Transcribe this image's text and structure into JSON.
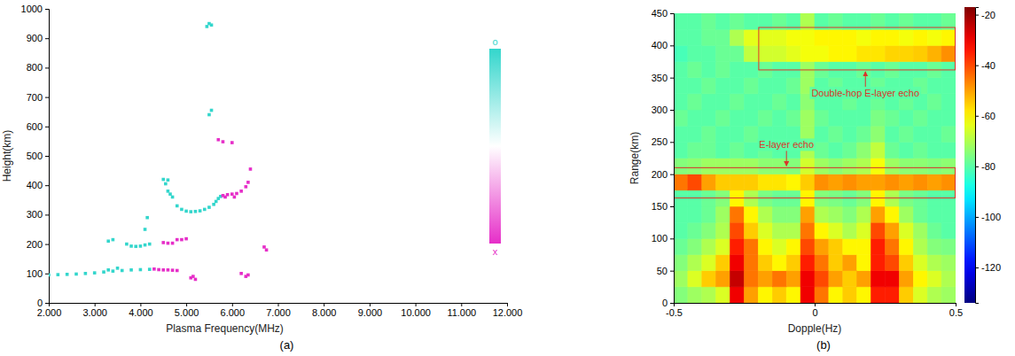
{
  "chart_data": [
    {
      "type": "scatter",
      "caption": "(a)",
      "xlabel": "Plasma Frequency(MHz)",
      "ylabel": "Height(km)",
      "xlim": [
        2,
        12
      ],
      "xticks": [
        {
          "value": 2,
          "label": "2.000"
        },
        {
          "value": 3,
          "label": "3.000"
        },
        {
          "value": 4,
          "label": "4.000"
        },
        {
          "value": 5,
          "label": "5.000"
        },
        {
          "value": 6,
          "label": "6.000"
        },
        {
          "value": 7,
          "label": "7.000"
        },
        {
          "value": 8,
          "label": "8.000"
        },
        {
          "value": 9,
          "label": "9.000"
        },
        {
          "value": 10,
          "label": "10.000"
        },
        {
          "value": 11,
          "label": "11.000"
        },
        {
          "value": 12,
          "label": "12.000"
        }
      ],
      "ylim": [
        0,
        1000
      ],
      "yticks": [
        0,
        100,
        200,
        300,
        400,
        500,
        600,
        700,
        800,
        900,
        1000
      ],
      "grid": false,
      "legend": "right",
      "marker": "square",
      "series": [
        {
          "name": "o",
          "color": "#33d6cc",
          "x": [
            2.0,
            2.2,
            2.4,
            2.6,
            2.8,
            3.0,
            3.2,
            3.3,
            3.4,
            3.5,
            3.6,
            3.8,
            4.0,
            4.2,
            3.3,
            3.4,
            3.7,
            3.8,
            3.9,
            4.0,
            4.1,
            4.2,
            4.1,
            4.15,
            4.5,
            4.6,
            4.55,
            4.6,
            4.65,
            4.7,
            4.8,
            4.9,
            5.0,
            5.1,
            5.2,
            5.3,
            5.4,
            5.5,
            5.6,
            5.65,
            5.7,
            5.75,
            5.5,
            5.55,
            5.45,
            5.5,
            5.55
          ],
          "values": [
            95,
            96,
            97,
            98,
            100,
            102,
            105,
            112,
            108,
            118,
            110,
            112,
            113,
            114,
            210,
            215,
            200,
            193,
            192,
            193,
            197,
            200,
            250,
            290,
            420,
            418,
            405,
            380,
            370,
            360,
            330,
            318,
            312,
            310,
            311,
            313,
            318,
            325,
            335,
            345,
            355,
            362,
            640,
            655,
            940,
            950,
            945
          ]
        },
        {
          "name": "x",
          "color": "#e62ec8",
          "x": [
            4.3,
            4.4,
            4.5,
            4.6,
            4.7,
            4.8,
            4.5,
            4.6,
            4.7,
            4.8,
            4.9,
            5.0,
            5.1,
            5.15,
            5.2,
            5.8,
            5.85,
            5.9,
            6.0,
            6.05,
            6.1,
            6.2,
            6.3,
            6.35,
            6.4,
            5.7,
            5.8,
            6.0,
            6.2,
            6.3,
            6.35,
            6.7,
            6.75
          ],
          "values": [
            115,
            113,
            112,
            112,
            111,
            110,
            205,
            203,
            203,
            215,
            215,
            218,
            85,
            90,
            80,
            365,
            360,
            368,
            370,
            360,
            372,
            380,
            395,
            410,
            455,
            555,
            548,
            545,
            100,
            90,
            95,
            190,
            180
          ]
        }
      ]
    },
    {
      "type": "heatmap",
      "caption": "(b)",
      "xlabel": "Dopple(Hz)",
      "ylabel": "Range(km)",
      "xlim": [
        -0.5,
        0.5
      ],
      "xticks": [
        -0.5,
        0,
        0.5
      ],
      "ylim": [
        0,
        450
      ],
      "yticks": [
        0,
        50,
        100,
        150,
        200,
        250,
        300,
        350,
        400,
        450
      ],
      "grid": false,
      "x_bins": [
        -0.5,
        -0.45,
        -0.4,
        -0.35,
        -0.3,
        -0.25,
        -0.2,
        -0.15,
        -0.1,
        -0.05,
        0,
        0.05,
        0.1,
        0.15,
        0.2,
        0.25,
        0.3,
        0.35,
        0.4,
        0.45,
        0.5
      ],
      "y_bins": [
        0,
        25,
        50,
        75,
        100,
        125,
        150,
        175,
        200,
        225,
        250,
        275,
        300,
        325,
        350,
        375,
        400,
        425,
        450
      ],
      "z": [
        [
          -75,
          -72,
          -70,
          -65,
          -30,
          -50,
          -60,
          -55,
          -60,
          -30,
          -45,
          -60,
          -55,
          -60,
          -35,
          -35,
          -55,
          -65,
          -70,
          -72
        ],
        [
          -72,
          -65,
          -55,
          -50,
          -25,
          -45,
          -50,
          -45,
          -50,
          -30,
          -40,
          -50,
          -55,
          -50,
          -30,
          -30,
          -50,
          -60,
          -65,
          -70
        ],
        [
          -75,
          -70,
          -65,
          -55,
          -30,
          -45,
          -55,
          -60,
          -55,
          -35,
          -45,
          -55,
          -50,
          -60,
          -35,
          -40,
          -55,
          -65,
          -70,
          -72
        ],
        [
          -78,
          -75,
          -70,
          -65,
          -35,
          -45,
          -60,
          -65,
          -60,
          -40,
          -50,
          -55,
          -60,
          -60,
          -35,
          -45,
          -60,
          -70,
          -75,
          -76
        ],
        [
          -80,
          -78,
          -75,
          -70,
          -40,
          -55,
          -65,
          -70,
          -70,
          -45,
          -60,
          -65,
          -70,
          -65,
          -40,
          -50,
          -65,
          -72,
          -78,
          -80
        ],
        [
          -80,
          -80,
          -78,
          -72,
          -45,
          -60,
          -70,
          -75,
          -75,
          -50,
          -70,
          -72,
          -75,
          -70,
          -50,
          -60,
          -72,
          -78,
          -80,
          -80
        ],
        [
          -80,
          -80,
          -78,
          -75,
          -60,
          -70,
          -76,
          -78,
          -78,
          -60,
          -75,
          -76,
          -78,
          -75,
          -60,
          -70,
          -76,
          -78,
          -80,
          -80
        ],
        [
          -45,
          -40,
          -50,
          -55,
          -55,
          -55,
          -58,
          -58,
          -60,
          -55,
          -48,
          -50,
          -48,
          -50,
          -50,
          -48,
          -50,
          -48,
          -50,
          -48
        ],
        [
          -75,
          -74,
          -72,
          -72,
          -72,
          -72,
          -74,
          -74,
          -75,
          -66,
          -72,
          -74,
          -72,
          -70,
          -62,
          -72,
          -74,
          -74,
          -75,
          -74
        ],
        [
          -80,
          -78,
          -78,
          -80,
          -78,
          -80,
          -78,
          -80,
          -80,
          -70,
          -78,
          -80,
          -78,
          -74,
          -68,
          -78,
          -80,
          -78,
          -80,
          -80
        ],
        [
          -80,
          -80,
          -78,
          -80,
          -80,
          -78,
          -80,
          -80,
          -80,
          -72,
          -80,
          -78,
          -80,
          -78,
          -74,
          -80,
          -78,
          -80,
          -80,
          -78
        ],
        [
          -78,
          -80,
          -80,
          -78,
          -80,
          -80,
          -78,
          -80,
          -78,
          -72,
          -78,
          -80,
          -80,
          -80,
          -76,
          -78,
          -80,
          -78,
          -80,
          -80
        ],
        [
          -80,
          -78,
          -80,
          -80,
          -78,
          -80,
          -80,
          -78,
          -80,
          -74,
          -80,
          -80,
          -78,
          -80,
          -78,
          -80,
          -78,
          -80,
          -78,
          -80
        ],
        [
          -80,
          -80,
          -78,
          -80,
          -80,
          -78,
          -80,
          -80,
          -78,
          -72,
          -80,
          -78,
          -80,
          -80,
          -78,
          -80,
          -80,
          -78,
          -80,
          -80
        ],
        [
          -80,
          -78,
          -80,
          -78,
          -80,
          -80,
          -78,
          -80,
          -80,
          -72,
          -78,
          -80,
          -80,
          -78,
          -80,
          -78,
          -80,
          -80,
          -78,
          -80
        ],
        [
          -82,
          -80,
          -80,
          -78,
          -78,
          -68,
          -66,
          -66,
          -64,
          -62,
          -62,
          -60,
          -60,
          -58,
          -58,
          -56,
          -56,
          -55,
          -52,
          -48
        ],
        [
          -80,
          -80,
          -78,
          -78,
          -70,
          -64,
          -64,
          -64,
          -62,
          -62,
          -60,
          -60,
          -60,
          -62,
          -60,
          -60,
          -62,
          -60,
          -62,
          -60
        ],
        [
          -80,
          -80,
          -78,
          -80,
          -78,
          -80,
          -80,
          -78,
          -80,
          -70,
          -80,
          -78,
          -80,
          -80,
          -78,
          -80,
          -78,
          -80,
          -80,
          -78
        ]
      ],
      "colorbar": {
        "range": [
          -134,
          -17
        ],
        "ticks": [
          -120,
          -100,
          -80,
          -60,
          -40,
          -20
        ]
      },
      "annotations": [
        {
          "text": "E-layer echo",
          "x": -0.1,
          "y": 210,
          "box": {
            "x": [
              -0.5,
              0.5
            ],
            "y": [
              163,
              210
            ]
          }
        },
        {
          "text": "Double-hop E-layer echo",
          "x": 0.18,
          "y": 362,
          "box": {
            "x": [
              -0.2,
              0.5
            ],
            "y": [
              362,
              428
            ]
          }
        }
      ]
    }
  ]
}
